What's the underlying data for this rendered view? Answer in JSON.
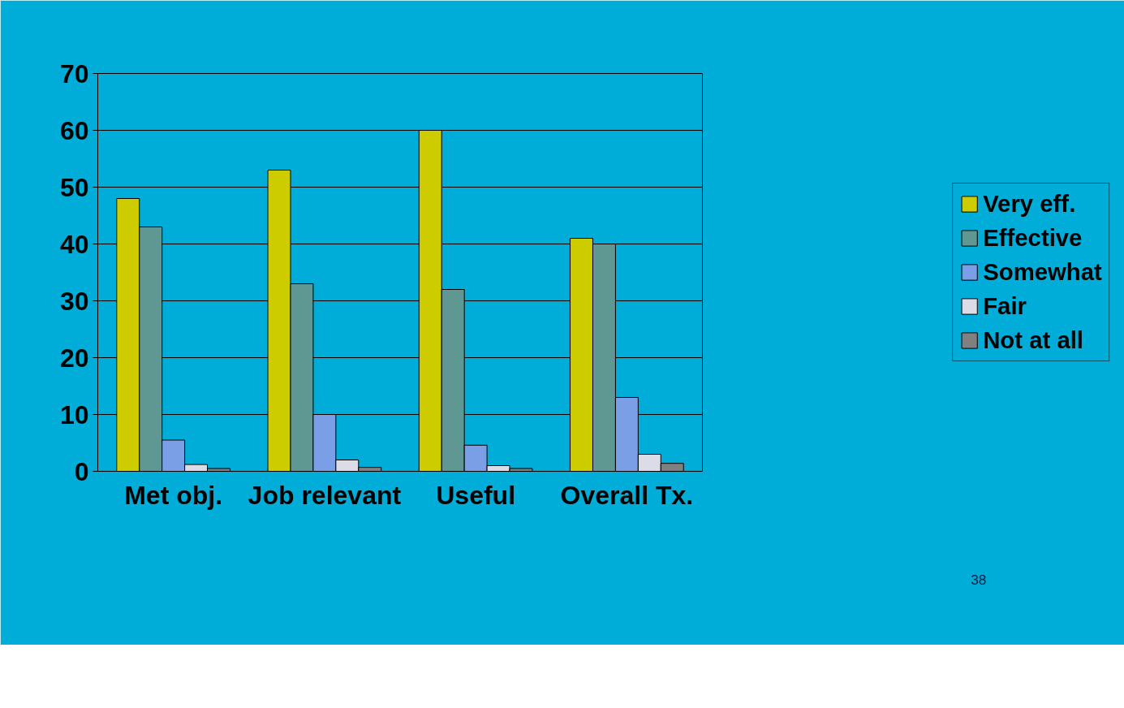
{
  "chart_data": {
    "type": "bar",
    "categories": [
      "Met obj.",
      "Job relevant",
      "Useful",
      "Overall Tx."
    ],
    "series": [
      {
        "name": "Very eff.",
        "color": "#cccc00",
        "values": [
          48,
          53,
          60,
          41
        ]
      },
      {
        "name": "Effective",
        "color": "#5f9793",
        "values": [
          43,
          33,
          32,
          40
        ]
      },
      {
        "name": "Somewhat",
        "color": "#7b9fe6",
        "values": [
          5.5,
          10,
          4.6,
          13
        ]
      },
      {
        "name": "Fair",
        "color": "#dcdce8",
        "values": [
          1.2,
          2,
          1,
          3
        ]
      },
      {
        "name": "Not at all",
        "color": "#808080",
        "values": [
          0.5,
          0.7,
          0.5,
          1.4
        ]
      }
    ],
    "ylim": [
      0,
      70
    ],
    "yticks": [
      0,
      10,
      20,
      30,
      40,
      50,
      60,
      70
    ],
    "grid": "y",
    "legend": "right",
    "annotations": [
      "38"
    ]
  }
}
